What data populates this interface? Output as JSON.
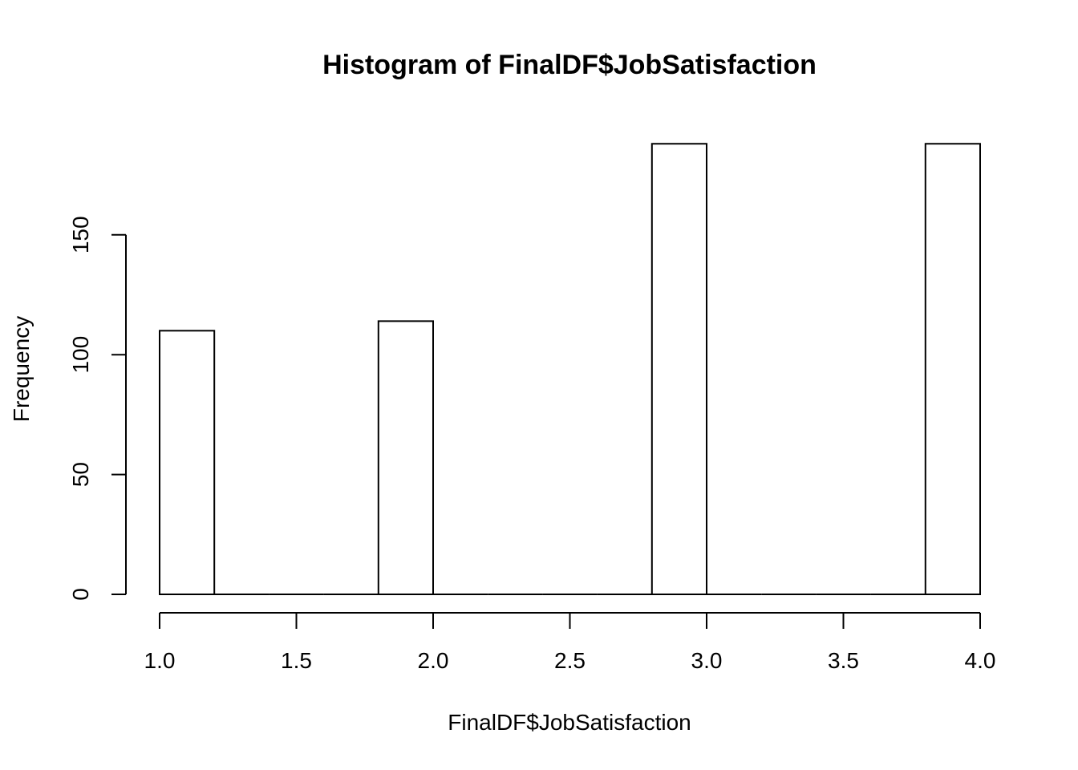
{
  "chart_data": {
    "type": "bar",
    "title": "Histogram of FinalDF$JobSatisfaction",
    "xlabel": "FinalDF$JobSatisfaction",
    "ylabel": "Frequency",
    "bins": [
      {
        "start": 1.0,
        "end": 1.2,
        "count": 110
      },
      {
        "start": 1.2,
        "end": 1.4,
        "count": 0
      },
      {
        "start": 1.4,
        "end": 1.6,
        "count": 0
      },
      {
        "start": 1.6,
        "end": 1.8,
        "count": 0
      },
      {
        "start": 1.8,
        "end": 2.0,
        "count": 114
      },
      {
        "start": 2.0,
        "end": 2.2,
        "count": 0
      },
      {
        "start": 2.2,
        "end": 2.4,
        "count": 0
      },
      {
        "start": 2.4,
        "end": 2.6,
        "count": 0
      },
      {
        "start": 2.6,
        "end": 2.8,
        "count": 0
      },
      {
        "start": 2.8,
        "end": 3.0,
        "count": 188
      },
      {
        "start": 3.0,
        "end": 3.2,
        "count": 0
      },
      {
        "start": 3.2,
        "end": 3.4,
        "count": 0
      },
      {
        "start": 3.4,
        "end": 3.6,
        "count": 0
      },
      {
        "start": 3.6,
        "end": 3.8,
        "count": 0
      },
      {
        "start": 3.8,
        "end": 4.0,
        "count": 188
      }
    ],
    "xlim": [
      1.0,
      4.0
    ],
    "ylim": [
      0,
      188
    ],
    "x_ticks": [
      "1.0",
      "1.5",
      "2.0",
      "2.5",
      "3.0",
      "3.5",
      "4.0"
    ],
    "y_ticks": [
      "0",
      "50",
      "100",
      "150"
    ],
    "grid": false,
    "legend": "none"
  }
}
